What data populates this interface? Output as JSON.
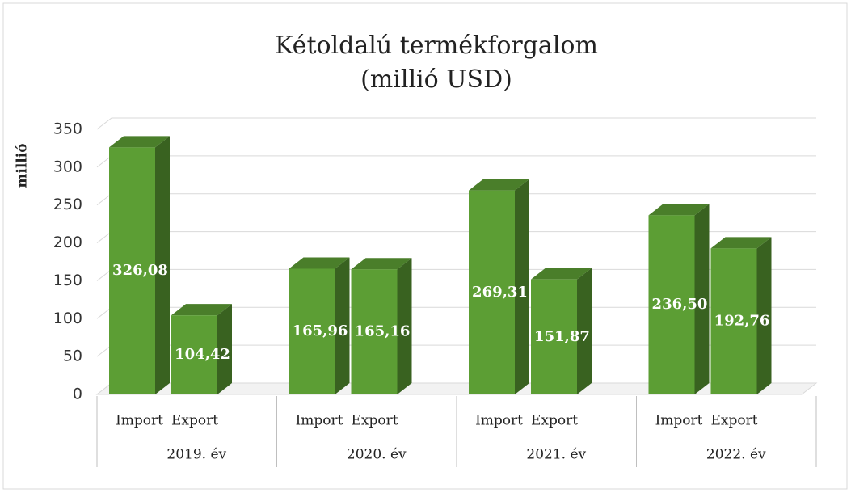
{
  "chart_data": {
    "type": "bar",
    "title": "Kétoldalú termékforgalom",
    "subtitle": "(millió USD)",
    "y_label": "millió",
    "groups": [
      "2019. év",
      "2020. év",
      "2021. év",
      "2022. év"
    ],
    "categories": [
      "Import",
      "Export",
      "Import",
      "Export",
      "Import",
      "Export",
      "Import",
      "Export"
    ],
    "values": [
      326.08,
      104.42,
      165.96,
      165.16,
      269.31,
      151.87,
      236.5,
      192.76
    ],
    "value_labels": [
      "326,08",
      "104,42",
      "165,96",
      "165,16",
      "269,31",
      "151,87",
      "236,50",
      "192,76"
    ],
    "color": "#5c9e34",
    "ylim": [
      0,
      350
    ],
    "yticks": [
      0,
      50,
      100,
      150,
      200,
      250,
      300,
      350
    ],
    "grid": true
  }
}
